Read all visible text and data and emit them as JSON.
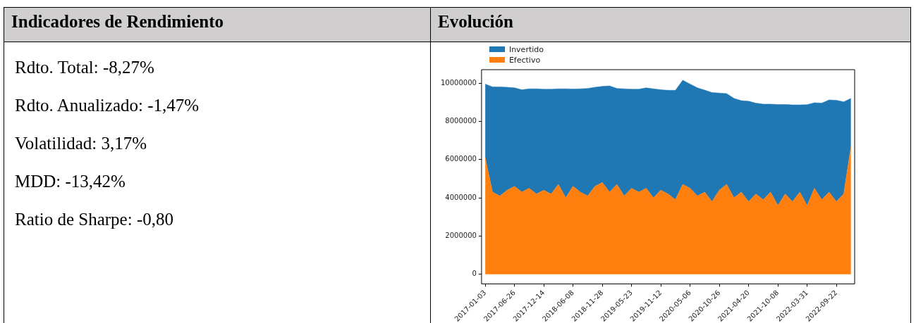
{
  "chart_data": {
    "type": "area",
    "title": "Evolución",
    "stacked": true,
    "annotations": [
      "Indicadores de Rendimiento",
      "Rdto. Total: -8,27%",
      "Rdto. Anualizado: -1,47%",
      "Volatilidad: 3,17%",
      "MDD: -13,42%",
      "Ratio de Sharpe: -0,80"
    ],
    "categories": [
      "2017-01-03",
      null,
      null,
      null,
      "2017-06-26",
      null,
      null,
      null,
      "2017-12-14",
      null,
      null,
      null,
      "2018-06-08",
      null,
      null,
      null,
      "2018-11-28",
      null,
      null,
      null,
      "2019-05-23",
      null,
      null,
      null,
      "2019-11-12",
      null,
      null,
      null,
      "2020-05-06",
      null,
      null,
      null,
      "2020-10-26",
      null,
      null,
      null,
      "2021-04-20",
      null,
      null,
      null,
      "2021-10-08",
      null,
      null,
      null,
      "2022-03-31",
      null,
      null,
      null,
      "2022-09-22",
      null,
      null
    ],
    "series": [
      {
        "name": "Efectivo",
        "color": "#ff7f0e",
        "values": [
          6100000,
          4300000,
          4100000,
          4400000,
          4600000,
          4300000,
          4500000,
          4200000,
          4400000,
          4200000,
          4700000,
          4000000,
          4600000,
          4300000,
          4100000,
          4600000,
          4800000,
          4300000,
          4700000,
          4100000,
          4500000,
          4300000,
          4500000,
          4000000,
          4400000,
          4200000,
          3900000,
          4700000,
          4500000,
          4100000,
          4300000,
          3800000,
          4400000,
          4700000,
          4000000,
          4300000,
          3800000,
          4200000,
          3900000,
          4300000,
          3600000,
          4200000,
          3800000,
          4300000,
          3600000,
          4500000,
          3900000,
          4300000,
          3800000,
          4200000,
          6700000
        ]
      },
      {
        "name": "Invertido",
        "color": "#1f77b4",
        "values": [
          3850000,
          5500000,
          5700000,
          5380000,
          5150000,
          5350000,
          5200000,
          5500000,
          5280000,
          5480000,
          5000000,
          5700000,
          5090000,
          5400000,
          5620000,
          5180000,
          5030000,
          5550000,
          5020000,
          5600000,
          5180000,
          5380000,
          5250000,
          5700000,
          5250000,
          5420000,
          5720000,
          5450000,
          5450000,
          5650000,
          5330000,
          5700000,
          5080000,
          4750000,
          5200000,
          4780000,
          5250000,
          4750000,
          5000000,
          4600000,
          5280000,
          4680000,
          5060000,
          4560000,
          5270000,
          4470000,
          5050000,
          4820000,
          5300000,
          4820000,
          2500000
        ]
      }
    ],
    "ylim": [
      -500000,
      10700000
    ],
    "yticks": [
      0,
      2000000,
      4000000,
      6000000,
      8000000,
      10000000
    ],
    "grid": false,
    "legend": "top left",
    "marker": "none"
  }
}
